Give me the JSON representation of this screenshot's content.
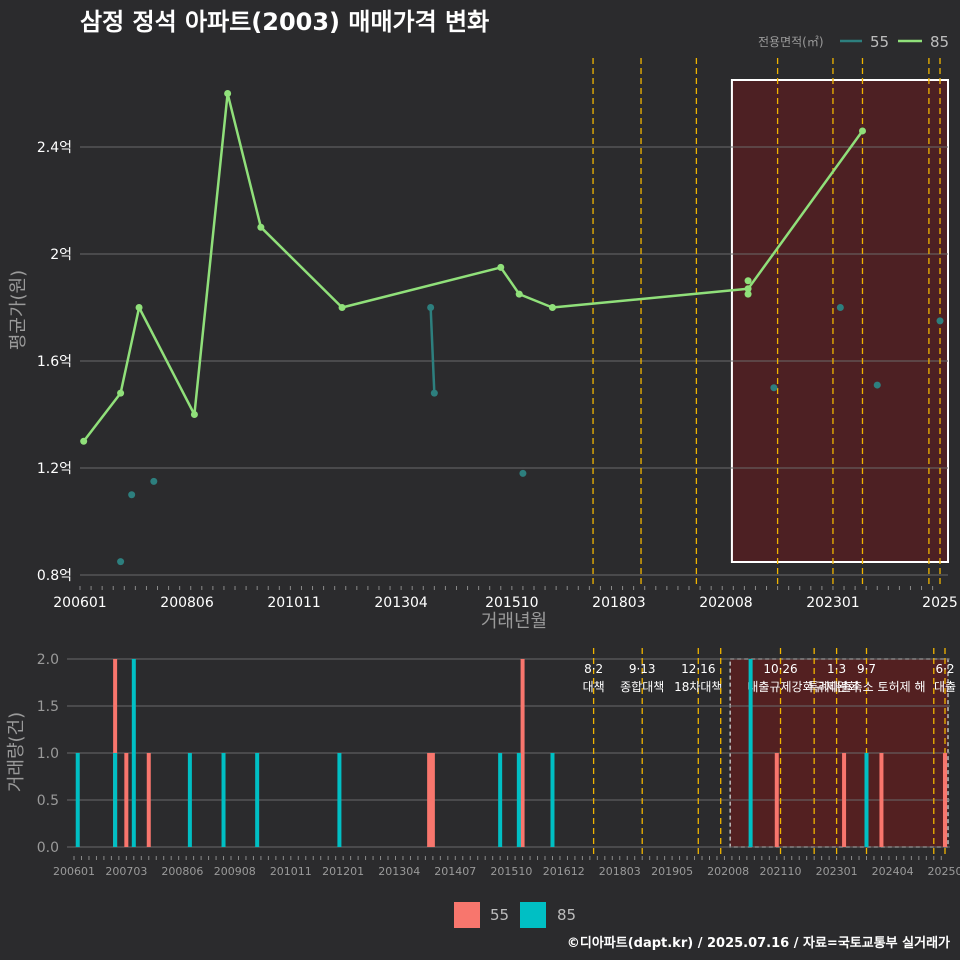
{
  "title": "삼정 정석 아파트(2003) 매매가격 변화",
  "footer": "©디아파트(dapt.kr) / 2025.07.16 / 자료=국토교통부 실거래가",
  "colors": {
    "background": "#2b2b2d",
    "line85": "#90e07a",
    "point55": "#2d7f7e",
    "bar55": "#f8766d",
    "bar85": "#00bfc4",
    "event": "#f0b400",
    "highlight": "#5a1e20"
  },
  "chart_data": [
    {
      "type": "line",
      "title": "삼정 정석 아파트(2003) 매매가격 변화",
      "xlabel": "거래년월",
      "ylabel": "평균가(원)",
      "ylim": [
        0.75,
        2.7
      ],
      "y_ticks": [
        0.8,
        1.2,
        1.6,
        2.0,
        2.4
      ],
      "y_tick_labels": [
        "0.8억",
        "1.2억",
        "1.6억",
        "2억",
        "2.4억"
      ],
      "x_ticks": [
        "2006-01",
        "2008-06",
        "2010-11",
        "2013-04",
        "2015-10",
        "2018-03",
        "2020-08",
        "2023-01",
        "2025-06"
      ],
      "x_tick_labels": [
        "200601",
        "200806",
        "201011",
        "201304",
        "201510",
        "201803",
        "202008",
        "202301",
        "2025"
      ],
      "legend": {
        "title": "전용면적(㎡)",
        "position": "top-right",
        "entries": [
          "55",
          "85"
        ]
      },
      "grid": true,
      "series": [
        {
          "name": "85",
          "points": [
            {
              "x": "2006-02",
              "y": 1.3
            },
            {
              "x": "2006-12",
              "y": 1.48
            },
            {
              "x": "2007-05",
              "y": 1.8
            },
            {
              "x": "2008-08",
              "y": 1.4
            },
            {
              "x": "2009-05",
              "y": 2.6
            },
            {
              "x": "2010-02",
              "y": 2.1
            },
            {
              "x": "2011-12",
              "y": 1.8
            },
            {
              "x": "2015-07",
              "y": 1.95
            },
            {
              "x": "2015-12",
              "y": 1.85
            },
            {
              "x": "2016-09",
              "y": 1.8
            },
            {
              "x": "2021-02",
              "y": 1.87
            },
            {
              "x": "2023-09",
              "y": 2.46
            }
          ],
          "extra_points": [
            {
              "x": "2021-02",
              "y": 1.9
            },
            {
              "x": "2021-02",
              "y": 1.85
            }
          ]
        },
        {
          "name": "55",
          "points": [
            {
              "x": "2006-12",
              "y": 0.85
            },
            {
              "x": "2007-03",
              "y": 1.1
            },
            {
              "x": "2007-09",
              "y": 1.15
            },
            {
              "x": "2013-12",
              "y": 1.8
            },
            {
              "x": "2014-01",
              "y": 1.48
            },
            {
              "x": "2016-01",
              "y": 1.18
            },
            {
              "x": "2021-09",
              "y": 1.5
            },
            {
              "x": "2023-03",
              "y": 1.8
            },
            {
              "x": "2024-01",
              "y": 1.51
            },
            {
              "x": "2025-06",
              "y": 1.75
            }
          ],
          "segments": [
            [
              {
                "x": "2013-12",
                "y": 1.8
              },
              {
                "x": "2014-01",
                "y": 1.48
              }
            ]
          ]
        }
      ],
      "highlight_range": [
        "2020-08",
        "2025-06"
      ],
      "event_dates": [
        "2017-08",
        "2018-09",
        "2019-12",
        "2021-10",
        "2023-01",
        "2023-09",
        "2025-03",
        "2025-06"
      ]
    },
    {
      "type": "bar",
      "xlabel": "",
      "ylabel": "거래량(건)",
      "ylim": [
        0,
        2
      ],
      "y_ticks": [
        0,
        0.5,
        1.0,
        1.5,
        2.0
      ],
      "y_tick_labels": [
        "0.0",
        "0.5",
        "1.0",
        "1.5",
        "2.0"
      ],
      "x_ticks": [
        "2006-01",
        "2007-03",
        "2008-06",
        "2009-08",
        "2010-11",
        "2012-01",
        "2013-04",
        "2014-07",
        "2015-10",
        "2016-12",
        "2018-03",
        "2019-05",
        "2020-08",
        "2021-10",
        "2023-01",
        "2024-04",
        "2025-06"
      ],
      "x_tick_labels": [
        "200601",
        "200703",
        "200806",
        "200908",
        "201011",
        "201201",
        "201304",
        "201407",
        "201510",
        "201612",
        "201803",
        "201905",
        "202008",
        "202110",
        "202301",
        "202404",
        "20250"
      ],
      "legend": {
        "position": "bottom",
        "entries": [
          "55",
          "85"
        ]
      },
      "grid": true,
      "series": [
        {
          "name": "55",
          "bars": [
            {
              "x": "2006-12",
              "y": 2
            },
            {
              "x": "2007-03",
              "y": 1
            },
            {
              "x": "2007-09",
              "y": 1
            },
            {
              "x": "2013-12",
              "y": 1
            },
            {
              "x": "2014-01",
              "y": 1
            },
            {
              "x": "2016-01",
              "y": 2
            },
            {
              "x": "2021-09",
              "y": 1
            },
            {
              "x": "2023-03",
              "y": 1
            },
            {
              "x": "2024-01",
              "y": 1
            },
            {
              "x": "2025-06",
              "y": 1
            }
          ]
        },
        {
          "name": "85",
          "bars": [
            {
              "x": "2006-02",
              "y": 1
            },
            {
              "x": "2006-12",
              "y": 1
            },
            {
              "x": "2007-05",
              "y": 2
            },
            {
              "x": "2008-08",
              "y": 1
            },
            {
              "x": "2009-05",
              "y": 1
            },
            {
              "x": "2010-02",
              "y": 1
            },
            {
              "x": "2011-12",
              "y": 1
            },
            {
              "x": "2015-07",
              "y": 1
            },
            {
              "x": "2015-12",
              "y": 1
            },
            {
              "x": "2016-09",
              "y": 1
            },
            {
              "x": "2021-02",
              "y": 2
            },
            {
              "x": "2023-09",
              "y": 1
            }
          ]
        }
      ],
      "highlight_range": [
        "2020-08",
        "2025-06"
      ],
      "events": [
        {
          "x": "2017-08",
          "date": "8·2",
          "name": "대책"
        },
        {
          "x": "2018-09",
          "date": "9·13",
          "name": "종합대책"
        },
        {
          "x": "2019-12",
          "date": "12·16",
          "name": "18차대책"
        },
        {
          "x": "2020-06",
          "date": "",
          "name": ""
        },
        {
          "x": "2021-10",
          "date": "10·26",
          "name": "대출규제강화"
        },
        {
          "x": "2022-07",
          "date": "",
          "name": ""
        },
        {
          "x": "2023-01",
          "date": "1·3",
          "name": "규제완화"
        },
        {
          "x": "2023-09",
          "date": "9·7",
          "name": "특례대출축소 토허제 해"
        },
        {
          "x": "2025-03",
          "date": "",
          "name": ""
        },
        {
          "x": "2025-06",
          "date": "6·2",
          "name": "대출"
        }
      ]
    }
  ]
}
